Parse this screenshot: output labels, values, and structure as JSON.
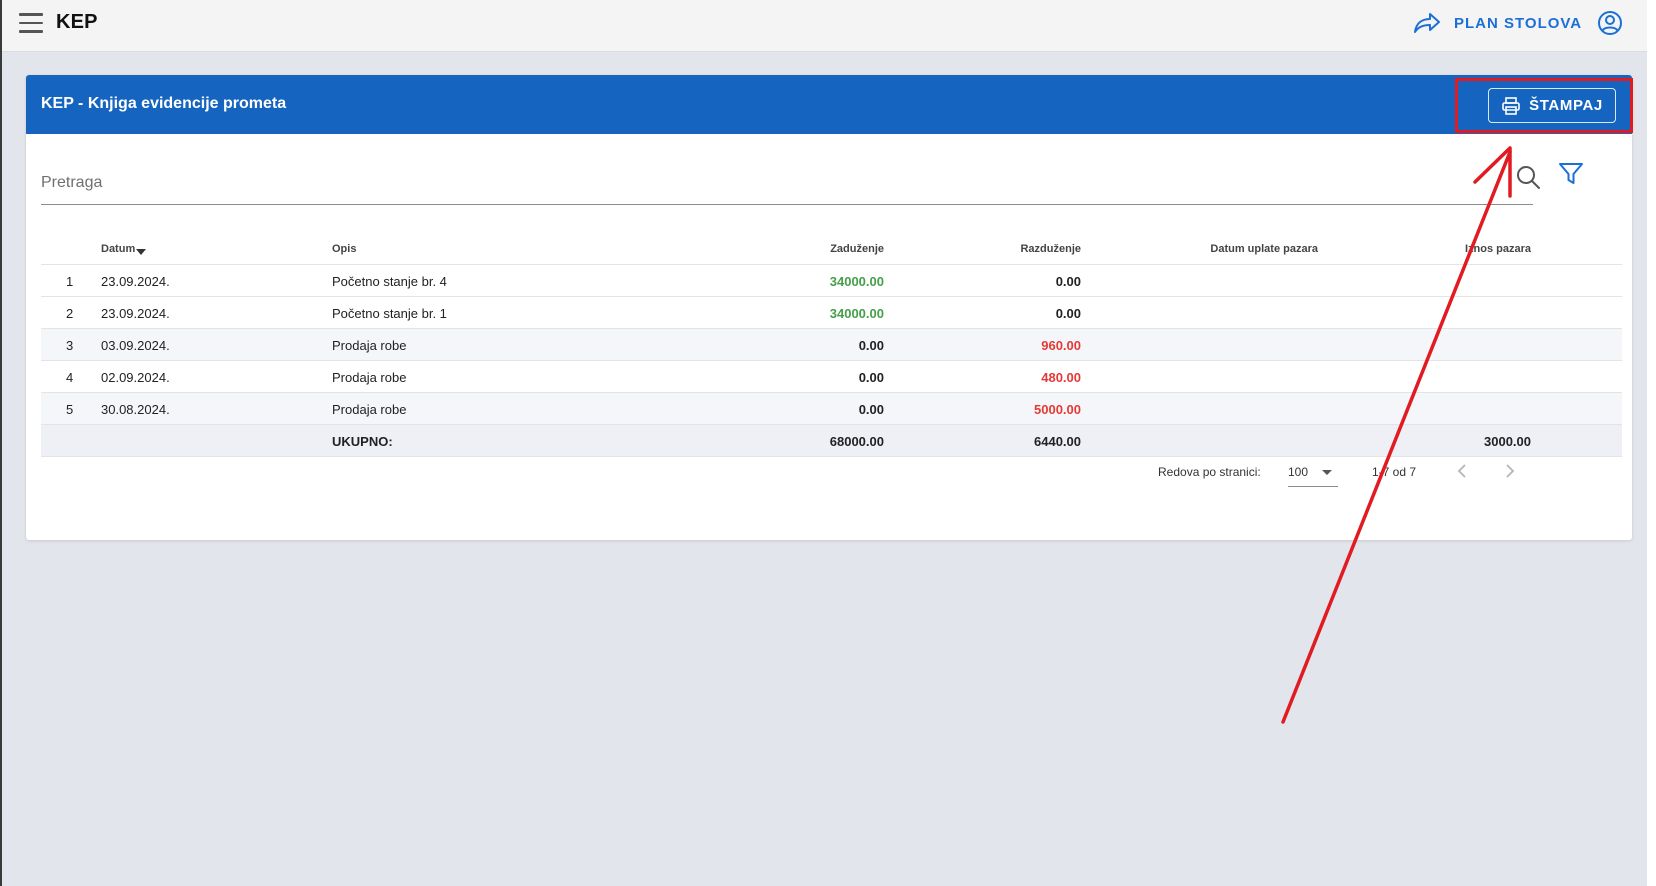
{
  "app": {
    "title": "KEP",
    "plan_label": "PLAN STOLOVA"
  },
  "card": {
    "title": "KEP - Knjiga evidencije prometa",
    "print_label": "ŠTAMPAJ"
  },
  "search": {
    "placeholder": "Pretraga"
  },
  "table": {
    "columns": {
      "datum": "Datum",
      "opis": "Opis",
      "zaduzenje": "Zaduženje",
      "razduzenje": "Razduženje",
      "datum_uplate": "Datum uplate pazara",
      "iznos": "Iznos pazara"
    },
    "rows": [
      {
        "no": "1",
        "datum": "23.09.2024.",
        "opis": "Početno stanje br. 4",
        "zaduzenje": "34000.00",
        "razduzenje": "0.00"
      },
      {
        "no": "2",
        "datum": "23.09.2024.",
        "opis": "Početno stanje br. 1",
        "zaduzenje": "34000.00",
        "razduzenje": "0.00"
      },
      {
        "no": "3",
        "datum": "03.09.2024.",
        "opis": "Prodaja robe",
        "zaduzenje": "0.00",
        "razduzenje": "960.00"
      },
      {
        "no": "4",
        "datum": "02.09.2024.",
        "opis": "Prodaja robe",
        "zaduzenje": "0.00",
        "razduzenje": "480.00"
      },
      {
        "no": "5",
        "datum": "30.08.2024.",
        "opis": "Prodaja robe",
        "zaduzenje": "0.00",
        "razduzenje": "5000.00"
      }
    ],
    "total": {
      "label": "UKUPNO:",
      "zaduzenje": "68000.00",
      "razduzenje": "6440.00",
      "iznos": "3000.00"
    }
  },
  "pagination": {
    "rows_label": "Redova po stranici:",
    "rows_value": "100",
    "range": "1-7 od 7"
  },
  "colors": {
    "header_blue": "#1565c0",
    "accent_blue": "#1b6fd6",
    "green": "#43a047",
    "red": "#e53935",
    "annotation_red": "#e11b22"
  }
}
